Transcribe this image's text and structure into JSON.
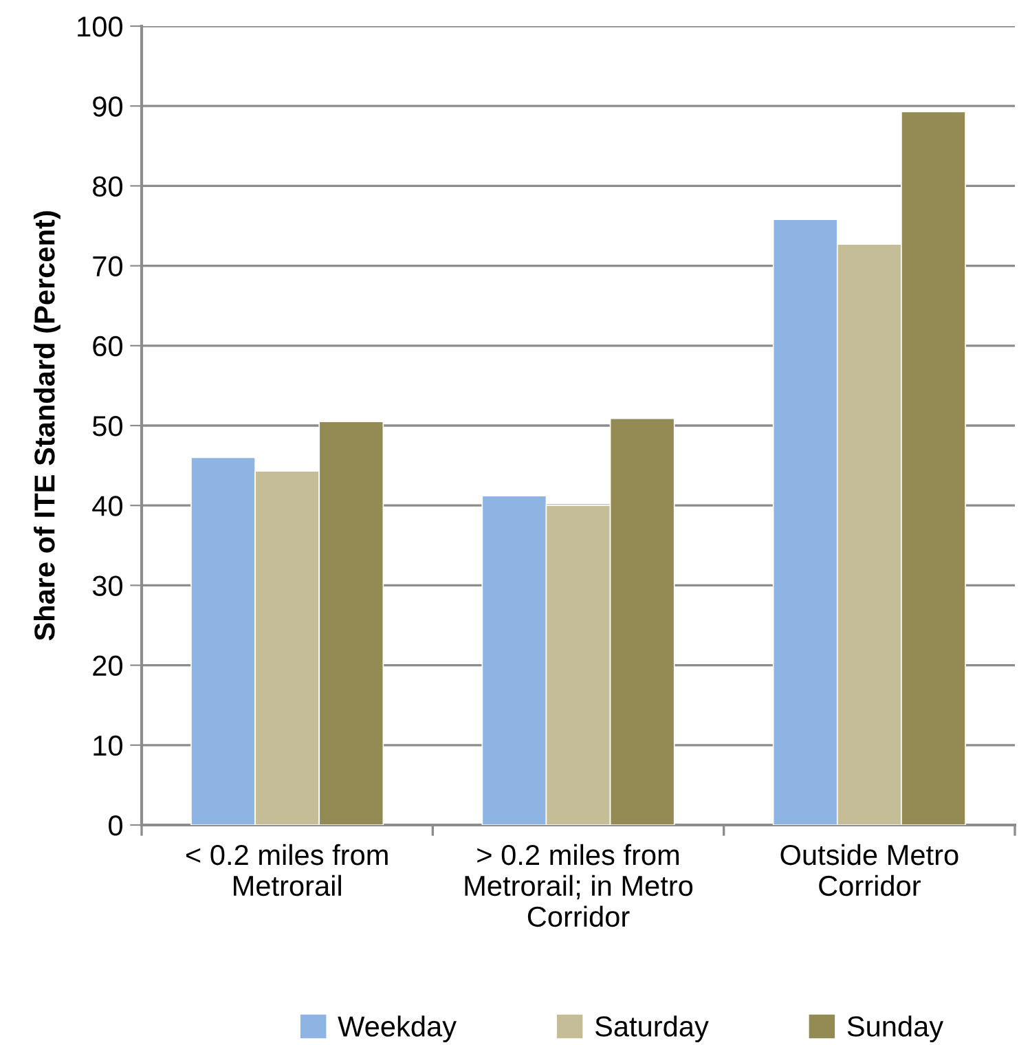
{
  "chart_data": {
    "type": "bar",
    "ylabel": "Share of ITE Standard (Percent)",
    "categories": [
      "< 0.2 miles from\nMetrorail",
      "> 0.2 miles from\nMetrorail; in Metro\nCorridor",
      "Outside Metro\nCorridor"
    ],
    "series": [
      {
        "name": "Weekday",
        "color": "#8eb4e3",
        "values": [
          46.0,
          41.2,
          75.8
        ]
      },
      {
        "name": "Saturday",
        "color": "#c4bd97",
        "values": [
          44.3,
          40.0,
          72.7
        ]
      },
      {
        "name": "Sunday",
        "color": "#948a54",
        "values": [
          50.5,
          50.9,
          89.3
        ]
      }
    ],
    "ylim": [
      0,
      100
    ],
    "yticks": [
      0,
      10,
      20,
      30,
      40,
      50,
      60,
      70,
      80,
      90,
      100
    ],
    "grid": "y",
    "legend": "bottom"
  }
}
